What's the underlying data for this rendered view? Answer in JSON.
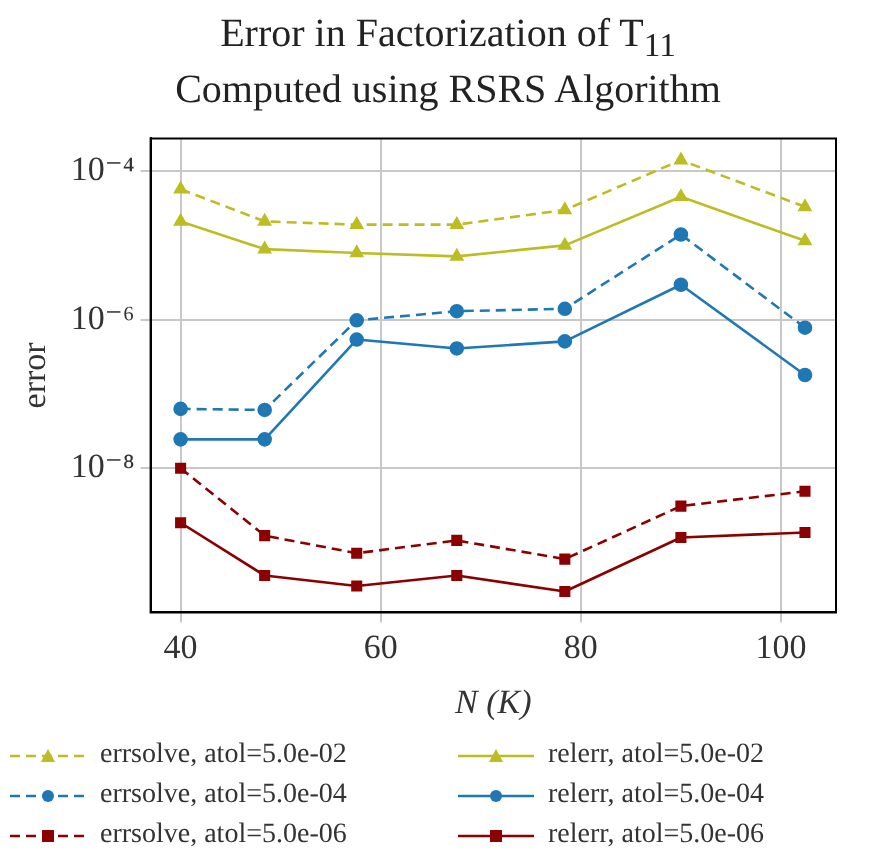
{
  "chart_data": {
    "type": "line",
    "title": "Error in Factorization of T$_{11}$",
    "subtitle": "Computed using RSRS Algorithm",
    "xlabel": "N (K)",
    "ylabel": "error",
    "x": [
      40,
      48.4,
      57.6,
      67.6,
      78.4,
      90,
      102.4
    ],
    "xlim": [
      37,
      105.5
    ],
    "xticks": [
      40,
      60,
      80,
      100
    ],
    "ylim": [
      1.15e-10,
      0.000275
    ],
    "yticks": [
      {
        "value": 0.0001,
        "label": "10⁻⁴"
      },
      {
        "value": 1e-06,
        "label": "10⁻⁶"
      },
      {
        "value": 1e-08,
        "label": "10⁻⁸"
      }
    ],
    "log": "y",
    "grid": true,
    "legend": "bottom",
    "series": [
      {
        "name": "errsolve, atol=5.0e-02",
        "color": "#bcbd22",
        "marker": "triangle",
        "line_style": "dashed",
        "values": [
          5.7e-05,
          2.1e-05,
          1.9e-05,
          1.9e-05,
          3e-05,
          0.00014,
          3.3e-05
        ]
      },
      {
        "name": "relerr, atol=5.0e-02",
        "color": "#bcbd22",
        "marker": "triangle",
        "line_style": "solid",
        "values": [
          2.1e-05,
          8.9e-06,
          7.9e-06,
          7.1e-06,
          1e-05,
          4.5e-05,
          1.15e-05
        ]
      },
      {
        "name": "errsolve, atol=5.0e-04",
        "color": "#1f77b4",
        "marker": "circle",
        "line_style": "dashed",
        "values": [
          6.3e-08,
          6.1e-08,
          9.8e-07,
          1.3e-06,
          1.4e-06,
          1.4e-05,
          7.8e-07
        ]
      },
      {
        "name": "relerr, atol=5.0e-04",
        "color": "#1f77b4",
        "marker": "circle",
        "line_style": "solid",
        "values": [
          2.45e-08,
          2.45e-08,
          5.4e-07,
          4.1e-07,
          5.1e-07,
          2.95e-06,
          1.8e-07
        ]
      },
      {
        "name": "errsolve, atol=5.0e-06",
        "color": "#8b0000",
        "marker": "square",
        "line_style": "dashed",
        "values": [
          1e-08,
          1.24e-09,
          7.2e-10,
          1.07e-09,
          6e-10,
          3.1e-09,
          4.9e-09
        ]
      },
      {
        "name": "relerr, atol=5.0e-06",
        "color": "#8b0000",
        "marker": "square",
        "line_style": "solid",
        "values": [
          1.85e-09,
          3.6e-10,
          2.6e-10,
          3.6e-10,
          2.2e-10,
          1.17e-09,
          1.37e-09
        ]
      }
    ]
  }
}
